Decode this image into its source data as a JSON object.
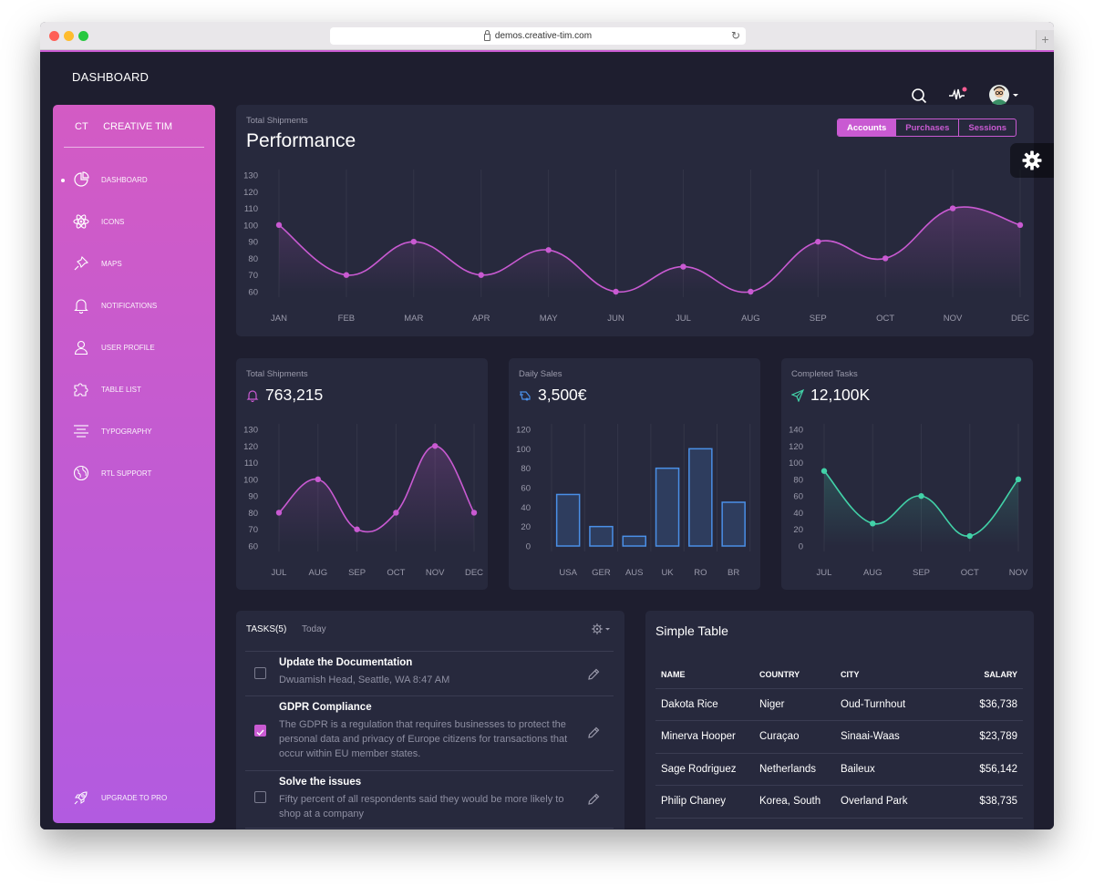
{
  "browser": {
    "url": "demos.creative-tim.com",
    "traffic_lights": [
      "#ff5f57",
      "#febc2e",
      "#28c840"
    ]
  },
  "navbar": {
    "title": "DASHBOARD"
  },
  "sidebar": {
    "logo_mini": "CT",
    "logo_text": "CREATIVE TIM",
    "items": [
      {
        "label": "DASHBOARD",
        "icon": "chart-pie-icon",
        "active": true
      },
      {
        "label": "ICONS",
        "icon": "atom-icon"
      },
      {
        "label": "MAPS",
        "icon": "pin-icon"
      },
      {
        "label": "NOTIFICATIONS",
        "icon": "bell-icon"
      },
      {
        "label": "USER PROFILE",
        "icon": "user-icon"
      },
      {
        "label": "TABLE LIST",
        "icon": "puzzle-icon"
      },
      {
        "label": "TYPOGRAPHY",
        "icon": "align-center-icon"
      },
      {
        "label": "RTL SUPPORT",
        "icon": "world-icon"
      }
    ],
    "upgrade_label": "UPGRADE TO PRO"
  },
  "performance": {
    "subtitle": "Total Shipments",
    "title": "Performance",
    "tabs": [
      "Accounts",
      "Purchases",
      "Sessions"
    ],
    "active_tab": "Accounts"
  },
  "small_cards": [
    {
      "subtitle": "Total Shipments",
      "value": "763,215",
      "icon": "bell-icon",
      "icon_color": "#c95ad2"
    },
    {
      "subtitle": "Daily Sales",
      "value": "3,500€",
      "icon": "delivery-icon",
      "icon_color": "#4a8fe7"
    },
    {
      "subtitle": "Completed Tasks",
      "value": "12,100K",
      "icon": "send-icon",
      "icon_color": "#42d2a8"
    }
  ],
  "tasks": {
    "title": "TASKS(5)",
    "filter": "Today",
    "items": [
      {
        "title": "Update the Documentation",
        "description": "Dwuamish Head, Seattle, WA 8:47 AM",
        "checked": false
      },
      {
        "title": "GDPR Compliance",
        "description": "The GDPR is a regulation that requires businesses to protect the personal data and privacy of Europe citizens for transactions that occur within EU member states.",
        "checked": true
      },
      {
        "title": "Solve the issues",
        "description": "Fifty percent of all respondents said they would be more likely to shop at a company",
        "checked": false
      }
    ]
  },
  "simple_table": {
    "title": "Simple Table",
    "headers": [
      "NAME",
      "COUNTRY",
      "CITY",
      "SALARY"
    ],
    "rows": [
      [
        "Dakota Rice",
        "Niger",
        "Oud-Turnhout",
        "$36,738"
      ],
      [
        "Minerva Hooper",
        "Curaçao",
        "Sinaai-Waas",
        "$23,789"
      ],
      [
        "Sage Rodriguez",
        "Netherlands",
        "Baileux",
        "$56,142"
      ],
      [
        "Philip Chaney",
        "Korea, South",
        "Overland Park",
        "$38,735"
      ]
    ]
  },
  "colors": {
    "accent": "#c95ad2",
    "blue": "#4a8fe7",
    "teal": "#42d2a8",
    "card": "#27293d",
    "background": "#1e1e2f"
  },
  "chart_data": [
    {
      "type": "line",
      "categories": [
        "JAN",
        "FEB",
        "MAR",
        "APR",
        "MAY",
        "JUN",
        "JUL",
        "AUG",
        "SEP",
        "OCT",
        "NOV",
        "DEC"
      ],
      "values": [
        100,
        70,
        90,
        70,
        85,
        60,
        75,
        60,
        90,
        80,
        110,
        100
      ],
      "yticks": [
        60,
        70,
        80,
        90,
        100,
        110,
        120,
        130
      ],
      "ylim": [
        60,
        130
      ],
      "color": "#c95ad2",
      "grid": "vertical"
    },
    {
      "type": "line",
      "categories": [
        "JUL",
        "AUG",
        "SEP",
        "OCT",
        "NOV",
        "DEC"
      ],
      "values": [
        80,
        100,
        70,
        80,
        120,
        80
      ],
      "yticks": [
        60,
        70,
        80,
        90,
        100,
        110,
        120,
        130
      ],
      "ylim": [
        60,
        130
      ],
      "color": "#c95ad2",
      "grid": "vertical"
    },
    {
      "type": "bar",
      "categories": [
        "USA",
        "GER",
        "AUS",
        "UK",
        "RO",
        "BR"
      ],
      "values": [
        53,
        20,
        10,
        80,
        100,
        45
      ],
      "yticks": [
        0,
        20,
        40,
        60,
        80,
        100,
        120
      ],
      "ylim": [
        0,
        120
      ],
      "color": "#4a8fe7",
      "grid": "both"
    },
    {
      "type": "line",
      "categories": [
        "JUL",
        "AUG",
        "SEP",
        "OCT",
        "NOV"
      ],
      "values": [
        90,
        27,
        60,
        12,
        80
      ],
      "yticks": [
        0,
        20,
        40,
        60,
        80,
        100,
        120,
        140
      ],
      "ylim": [
        0,
        140
      ],
      "color": "#42d2a8",
      "grid": "vertical"
    }
  ]
}
